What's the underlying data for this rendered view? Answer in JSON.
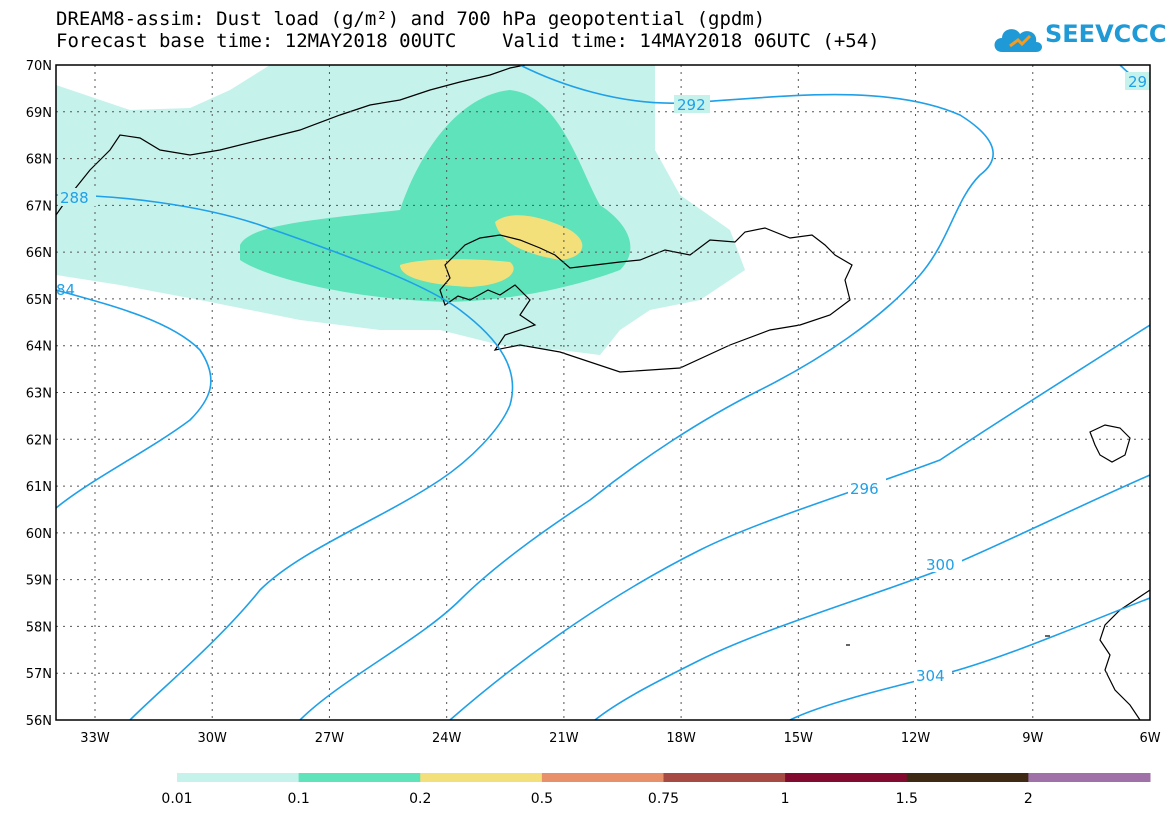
{
  "title": {
    "line1": "DREAM8-assim: Dust load (g/m²) and 700 hPa geopotential (gpdm)",
    "line2": "Forecast base time: 12MAY2018 00UTC    Valid time: 14MAY2018 06UTC (+54)"
  },
  "logo": {
    "text": "SEEVCCC",
    "icon": "cloud-icon"
  },
  "map": {
    "lat_labels": [
      "70N",
      "69N",
      "68N",
      "67N",
      "66N",
      "65N",
      "64N",
      "63N",
      "62N",
      "61N",
      "60N",
      "59N",
      "58N",
      "57N",
      "56N"
    ],
    "lon_labels": [
      "33W",
      "30W",
      "27W",
      "24W",
      "21W",
      "18W",
      "15W",
      "12W",
      "9W",
      "6W"
    ],
    "contour_labels": [
      "292",
      "29",
      "288",
      "84",
      "296",
      "300",
      "304"
    ],
    "contour_color": "#1fa0e8",
    "coast_color": "#000000"
  },
  "colorbar": {
    "labels": [
      "0.01",
      "0.1",
      "0.2",
      "0.5",
      "0.75",
      "1",
      "1.5",
      "2"
    ],
    "colors": [
      "#c6f2ec",
      "#5ee3bb",
      "#f4e07a",
      "#e8906a",
      "#a84a44",
      "#820a2e",
      "#3e2a14",
      "#a070a8"
    ]
  }
}
